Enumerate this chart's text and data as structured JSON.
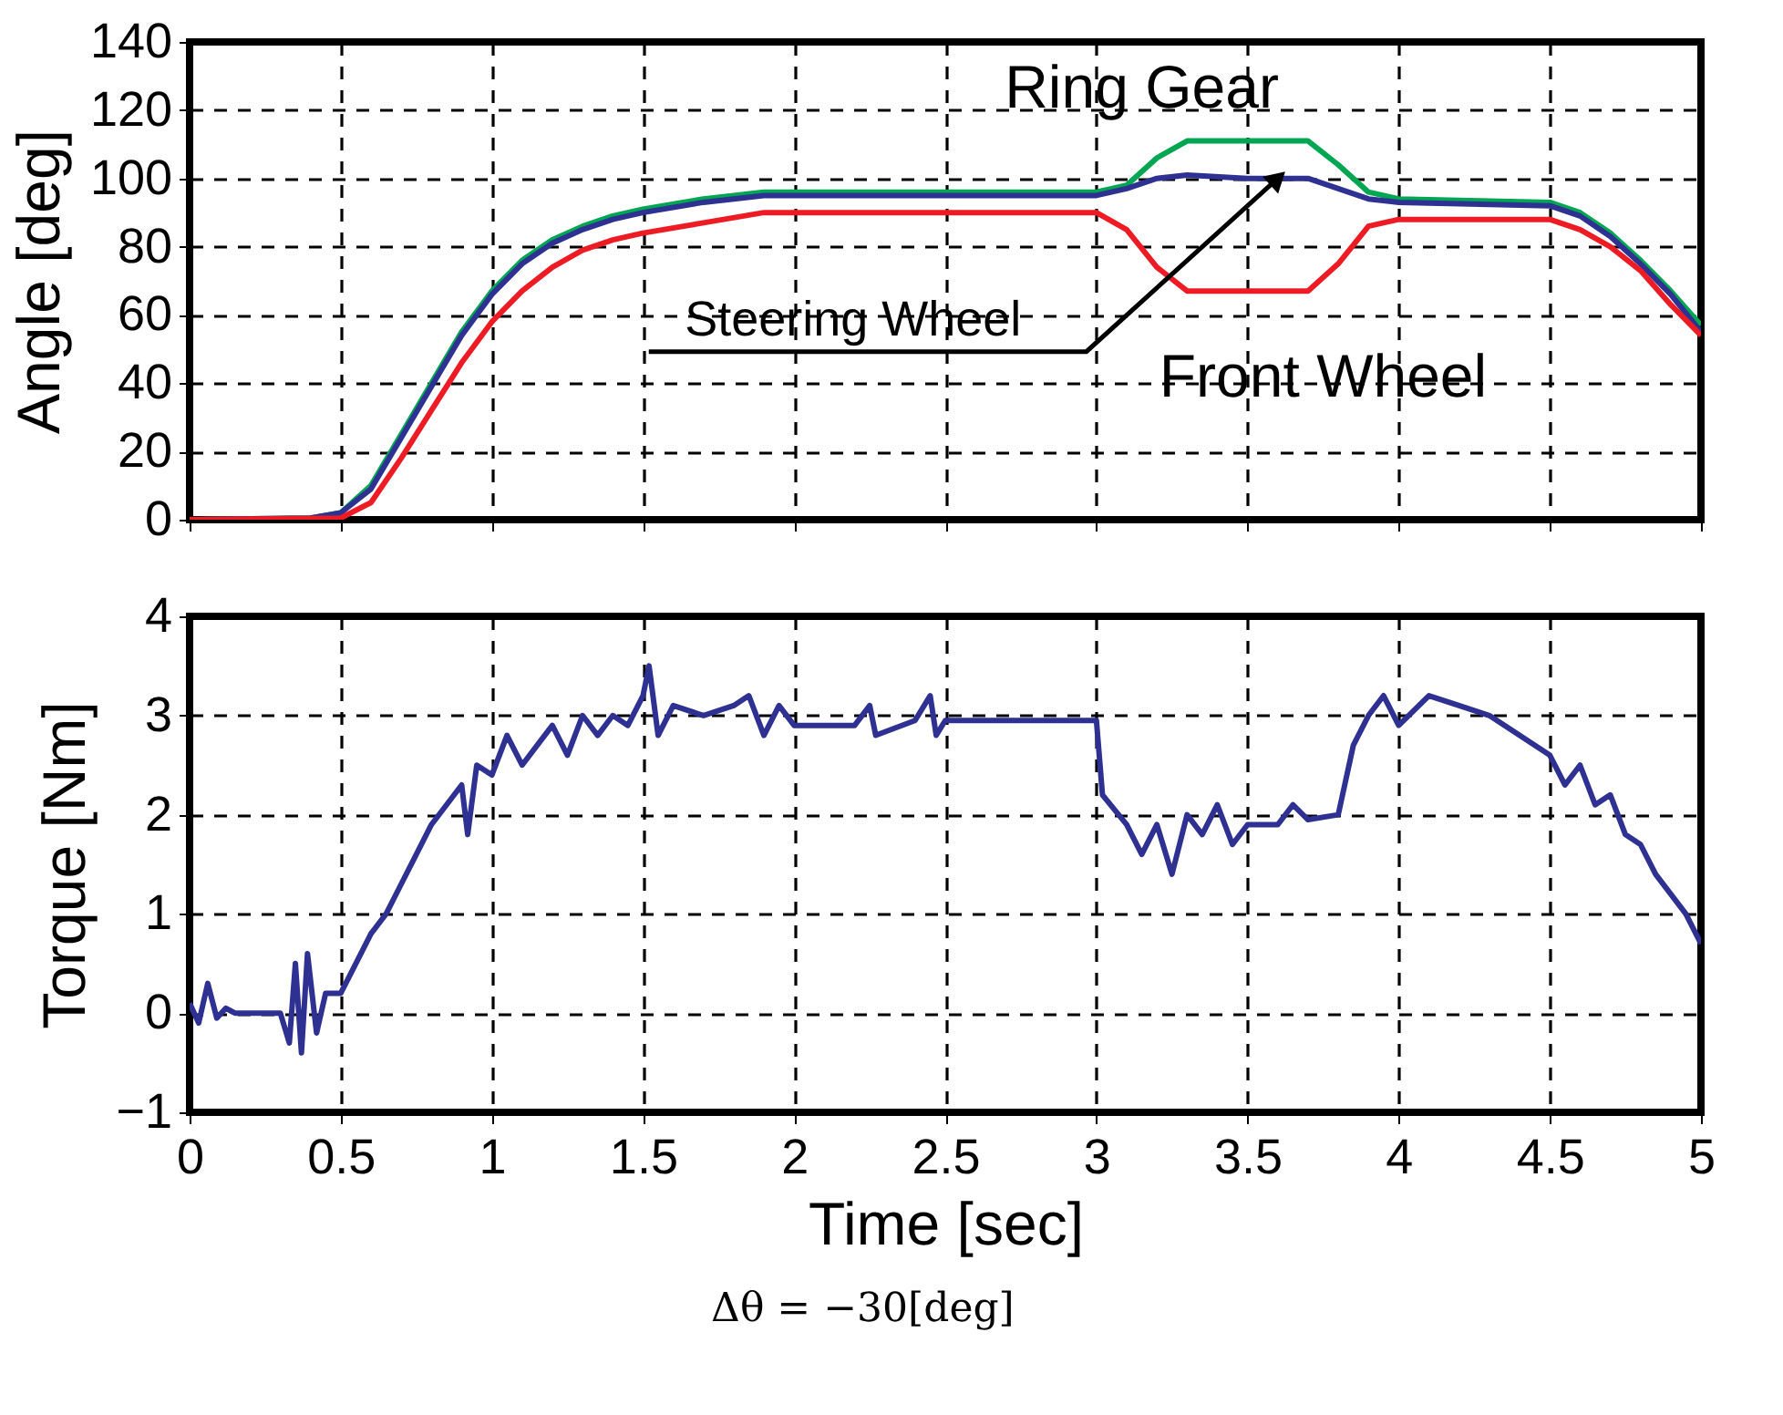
{
  "chart_data": [
    {
      "type": "line",
      "ylabel": "Angle [deg]",
      "xlim": [
        0,
        5
      ],
      "ylim": [
        0,
        140
      ],
      "xticks": [
        0,
        0.5,
        1,
        1.5,
        2,
        2.5,
        3,
        3.5,
        4,
        4.5,
        5
      ],
      "yticks": [
        0,
        20,
        40,
        60,
        80,
        100,
        120,
        140
      ],
      "grid": true,
      "tick_labels": "y",
      "line_style": "solid",
      "marker": "none",
      "series": [
        {
          "color": "#00a651",
          "x": [
            0,
            0.4,
            0.5,
            0.6,
            0.7,
            0.8,
            0.9,
            1.0,
            1.1,
            1.2,
            1.3,
            1.4,
            1.5,
            1.7,
            1.9,
            2.0,
            3.0,
            3.1,
            3.2,
            3.3,
            3.5,
            3.7,
            3.8,
            3.9,
            4.0,
            4.5,
            4.6,
            4.7,
            4.8,
            4.9,
            5.0
          ],
          "values": [
            0,
            0.5,
            2,
            10,
            25,
            40,
            55,
            67,
            76,
            82,
            86,
            89,
            91,
            94,
            96,
            96,
            96,
            98,
            106,
            111,
            111,
            111,
            104,
            96,
            94,
            93,
            90,
            84,
            76,
            67,
            57
          ]
        },
        {
          "color": "#2e3192",
          "x": [
            0,
            0.4,
            0.5,
            0.6,
            0.7,
            0.8,
            0.9,
            1.0,
            1.1,
            1.2,
            1.3,
            1.4,
            1.5,
            1.7,
            1.9,
            2.0,
            3.0,
            3.1,
            3.2,
            3.3,
            3.5,
            3.7,
            3.8,
            3.9,
            4.0,
            4.5,
            4.6,
            4.7,
            4.8,
            4.9,
            5.0
          ],
          "values": [
            0,
            0.5,
            2,
            9,
            24,
            39,
            54,
            66,
            75,
            81,
            85,
            88,
            90,
            93,
            95,
            95,
            95,
            97,
            100,
            101,
            100,
            100,
            97,
            94,
            93,
            92,
            89,
            83,
            75,
            66,
            55
          ]
        },
        {
          "color": "#ed1c24",
          "x": [
            0,
            0.5,
            0.6,
            0.7,
            0.8,
            0.9,
            1.0,
            1.1,
            1.2,
            1.3,
            1.4,
            1.5,
            1.7,
            1.9,
            3.0,
            3.1,
            3.2,
            3.3,
            3.7,
            3.8,
            3.9,
            4.0,
            4.5,
            4.6,
            4.7,
            4.8,
            4.9,
            5.0
          ],
          "values": [
            0,
            0.5,
            5,
            18,
            32,
            46,
            58,
            67,
            74,
            79,
            82,
            84,
            87,
            90,
            90,
            85,
            74,
            67,
            67,
            75,
            86,
            88,
            88,
            85,
            80,
            73,
            63,
            54
          ]
        }
      ],
      "annotations": [
        "Ring Gear",
        {
          "text": "Steering Wheel",
          "x": 3.6,
          "y": 100
        },
        {
          "text": "Front Wheel",
          "x": 3.75,
          "y": 67
        }
      ]
    },
    {
      "type": "line",
      "xlabel": "Time [sec]",
      "ylabel": "Torque [Nm]",
      "xlim": [
        0,
        5
      ],
      "ylim": [
        -1,
        4
      ],
      "xticks": [
        0,
        0.5,
        1,
        1.5,
        2,
        2.5,
        3,
        3.5,
        4,
        4.5,
        5
      ],
      "yticks": [
        -1,
        0,
        1,
        2,
        3,
        4
      ],
      "grid": true,
      "line_style": "solid",
      "marker": "none",
      "series": [
        {
          "color": "#2e3192",
          "x": [
            0,
            0.03,
            0.06,
            0.09,
            0.12,
            0.15,
            0.3,
            0.33,
            0.35,
            0.37,
            0.39,
            0.42,
            0.45,
            0.5,
            0.55,
            0.6,
            0.65,
            0.7,
            0.75,
            0.8,
            0.85,
            0.9,
            0.92,
            0.95,
            1.0,
            1.05,
            1.1,
            1.15,
            1.2,
            1.25,
            1.3,
            1.35,
            1.4,
            1.45,
            1.5,
            1.52,
            1.55,
            1.6,
            1.7,
            1.8,
            1.85,
            1.9,
            1.95,
            2.0,
            2.2,
            2.25,
            2.27,
            2.4,
            2.45,
            2.47,
            2.5,
            3.0,
            3.02,
            3.1,
            3.15,
            3.2,
            3.25,
            3.3,
            3.35,
            3.4,
            3.45,
            3.5,
            3.6,
            3.65,
            3.7,
            3.8,
            3.85,
            3.9,
            3.95,
            4.0,
            4.1,
            4.2,
            4.3,
            4.4,
            4.5,
            4.55,
            4.6,
            4.65,
            4.7,
            4.75,
            4.8,
            4.85,
            4.9,
            4.95,
            5.0
          ],
          "values": [
            0.1,
            -0.1,
            0.3,
            -0.05,
            0.05,
            0,
            0,
            -0.3,
            0.5,
            -0.4,
            0.6,
            -0.2,
            0.2,
            0.2,
            0.5,
            0.8,
            1.0,
            1.3,
            1.6,
            1.9,
            2.1,
            2.3,
            1.8,
            2.5,
            2.4,
            2.8,
            2.5,
            2.7,
            2.9,
            2.6,
            3.0,
            2.8,
            3.0,
            2.9,
            3.2,
            3.5,
            2.8,
            3.1,
            3.0,
            3.1,
            3.2,
            2.8,
            3.1,
            2.9,
            2.9,
            3.1,
            2.8,
            2.95,
            3.2,
            2.8,
            2.95,
            2.95,
            2.2,
            1.9,
            1.6,
            1.9,
            1.4,
            2.0,
            1.8,
            2.1,
            1.7,
            1.9,
            1.9,
            2.1,
            1.95,
            2.0,
            2.7,
            3.0,
            3.2,
            2.9,
            3.2,
            3.1,
            3.0,
            2.8,
            2.6,
            2.3,
            2.5,
            2.1,
            2.2,
            1.8,
            1.7,
            1.4,
            1.2,
            1.0,
            0.7
          ]
        }
      ],
      "annotations": [
        "Δθ = −30[deg]"
      ]
    }
  ]
}
